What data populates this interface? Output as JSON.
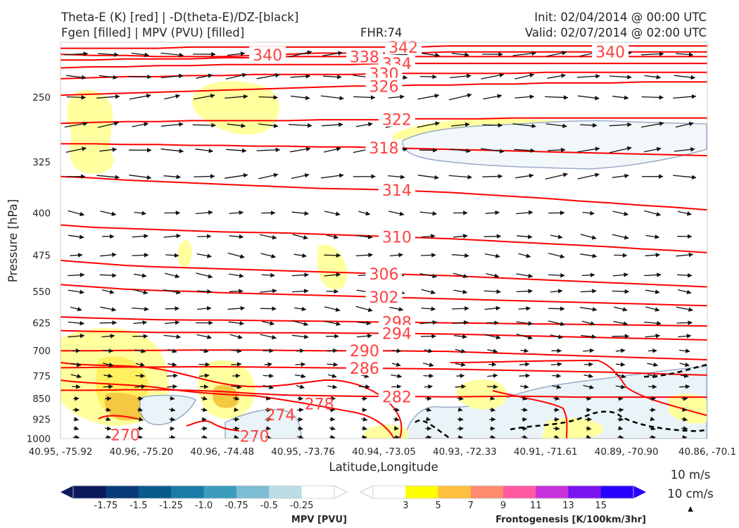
{
  "header": {
    "title_left_1": "Theta-E (K) [red] | -D(theta-E)/DZ-[black]",
    "title_left_2": "Fgen [filled] | MPV (PVU) [filled]",
    "title_center": "FHR:74",
    "title_right_1": "Init: 02/04/2014 @ 00:00 UTC",
    "title_right_2": "Valid: 02/07/2014 @ 02:00 UTC"
  },
  "chart_data": {
    "type": "cross-section",
    "xlabel": "Latitude,Longitude",
    "ylabel": "Pressure [hPa]",
    "x_ticks": [
      "40.95, -75.92",
      "40.96, -75.20",
      "40.96, -74.48",
      "40.95, -73.76",
      "40.94, -73.05",
      "40.93, -72.33",
      "40.91, -71.61",
      "40.89, -70.90",
      "40.86, -70.1"
    ],
    "x_first_tick": "40.95",
    "y_ticks": [
      250,
      325,
      400,
      475,
      550,
      625,
      700,
      775,
      850,
      925,
      1000
    ],
    "ylim": [
      1000,
      200
    ],
    "y_scale": "log-pressure",
    "theta_e": {
      "color": "#ff0000",
      "label_color": "#ff5050",
      "contours": [
        {
          "value": 342,
          "y": [
            205,
            205,
            205,
            205,
            204,
            204,
            204,
            204,
            204,
            204,
            204,
            204,
            203,
            203,
            203,
            203,
            203,
            203,
            203,
            203,
            203
          ],
          "labels": [
            {
              "text": "342",
              "x": 0.53
            }
          ]
        },
        {
          "value": 340,
          "y": [
            210,
            211,
            211,
            212,
            212,
            212,
            211,
            210,
            209,
            209,
            209,
            209,
            208,
            208,
            208,
            208,
            208,
            208,
            208,
            208,
            208
          ],
          "labels": [
            {
              "text": "340",
              "x": 0.32
            },
            {
              "text": "340",
              "x": 0.85
            }
          ]
        },
        {
          "value": 338,
          "y": [
            215,
            215,
            214,
            214,
            214,
            213,
            213,
            212,
            212,
            212,
            212,
            212,
            212,
            212,
            212,
            212,
            212,
            212,
            212,
            212,
            212
          ],
          "labels": [
            {
              "text": "338",
              "x": 0.47
            }
          ]
        },
        {
          "value": 334,
          "y": [
            222,
            221,
            221,
            220,
            220,
            219,
            219,
            219,
            219,
            219,
            218,
            218,
            218,
            218,
            218,
            218,
            218,
            218,
            218,
            218,
            218
          ],
          "labels": [
            {
              "text": "334",
              "x": 0.52
            }
          ]
        },
        {
          "value": 330,
          "y": [
            232,
            231,
            230,
            230,
            229,
            229,
            228,
            228,
            228,
            228,
            227,
            227,
            227,
            227,
            227,
            226,
            226,
            226,
            226,
            226,
            226
          ],
          "labels": [
            {
              "text": "330",
              "x": 0.5
            }
          ]
        },
        {
          "value": 326,
          "y": [
            248,
            247,
            246,
            245,
            244,
            243,
            242,
            241,
            240,
            239,
            239,
            238,
            238,
            237,
            237,
            236,
            236,
            236,
            235,
            235,
            235
          ],
          "labels": [
            {
              "text": "326",
              "x": 0.5
            }
          ]
        },
        {
          "value": 322,
          "y": [
            278,
            277,
            276,
            276,
            275,
            275,
            275,
            275,
            274,
            274,
            274,
            273,
            273,
            273,
            272,
            272,
            272,
            272,
            272,
            272,
            272
          ],
          "labels": [
            {
              "text": "322",
              "x": 0.52
            }
          ]
        },
        {
          "value": 318,
          "y": [
            302,
            302,
            303,
            303,
            304,
            304,
            305,
            305,
            306,
            306,
            307,
            308,
            309,
            310,
            311,
            312,
            313,
            314,
            315,
            316,
            317
          ],
          "labels": [
            {
              "text": "318",
              "x": 0.5
            }
          ]
        },
        {
          "value": 314,
          "y": [
            345,
            347,
            350,
            352,
            354,
            356,
            358,
            360,
            362,
            363,
            364,
            366,
            368,
            371,
            374,
            377,
            381,
            384,
            388,
            391,
            395
          ],
          "labels": [
            {
              "text": "314",
              "x": 0.52
            }
          ]
        },
        {
          "value": 310,
          "y": [
            420,
            424,
            426,
            428,
            430,
            432,
            433,
            434,
            436,
            438,
            440,
            442,
            444,
            447,
            450,
            453,
            456,
            459,
            463,
            466,
            470
          ],
          "labels": [
            {
              "text": "310",
              "x": 0.52
            }
          ]
        },
        {
          "value": 306,
          "y": [
            485,
            490,
            495,
            498,
            500,
            502,
            504,
            506,
            508,
            510,
            512,
            514,
            516,
            519,
            522,
            525,
            528,
            531,
            534,
            537,
            540
          ],
          "labels": [
            {
              "text": "306",
              "x": 0.5
            }
          ]
        },
        {
          "value": 302,
          "y": [
            535,
            540,
            545,
            548,
            550,
            553,
            555,
            557,
            559,
            561,
            563,
            565,
            567,
            569,
            571,
            573,
            575,
            577,
            579,
            581,
            583
          ],
          "labels": [
            {
              "text": "302",
              "x": 0.5
            }
          ]
        },
        {
          "value": 298,
          "y": [
            610,
            613,
            615,
            617,
            618,
            618,
            619,
            620,
            621,
            622,
            623,
            624,
            625,
            626,
            627,
            628,
            629,
            630,
            631,
            632,
            633
          ],
          "labels": [
            {
              "text": "298",
              "x": 0.52
            }
          ]
        },
        {
          "value": 294,
          "y": [
            645,
            647,
            648,
            650,
            650,
            650,
            651,
            651,
            651,
            652,
            652,
            653,
            654,
            656,
            658,
            660,
            662,
            664,
            666,
            668,
            670
          ],
          "labels": [
            {
              "text": "294",
              "x": 0.52
            }
          ]
        },
        {
          "value": 290,
          "y": [
            700,
            700,
            699,
            699,
            698,
            698,
            698,
            699,
            700,
            700,
            700,
            701,
            702,
            705,
            708,
            711,
            714,
            717,
            720,
            723,
            726
          ],
          "labels": [
            {
              "text": "290",
              "x": 0.47
            }
          ]
        },
        {
          "value": 286,
          "y": [
            750,
            749,
            748,
            748,
            747,
            747,
            748,
            749,
            750,
            751,
            752,
            753,
            754,
            756,
            758,
            760,
            762,
            764,
            767,
            770,
            773
          ],
          "labels": [
            {
              "text": "286",
              "x": 0.47
            }
          ]
        },
        {
          "value": 282,
          "y": [
            822,
            822,
            820,
            820,
            822,
            826,
            833,
            838,
            840,
            842,
            843,
            843,
            844,
            843,
            842,
            843,
            845,
            845,
            845,
            845,
            845
          ],
          "labels": [
            {
              "text": "282",
              "x": 0.52
            }
          ]
        }
      ],
      "low_labels": [
        {
          "text": "278",
          "x": 0.4,
          "p": 868
        },
        {
          "text": "274",
          "x": 0.34,
          "p": 908
        },
        {
          "text": "270",
          "x": 0.1,
          "p": 985
        },
        {
          "text": "270",
          "x": 0.3,
          "p": 990
        }
      ]
    },
    "fgen_colorbar": {
      "label": "Frontogenesis [K/100km/3hr]",
      "ticks": [
        3,
        5,
        7,
        9,
        11,
        13,
        15
      ],
      "colors": [
        "#ffffff",
        "#ffff00",
        "#ffc040",
        "#ff8c6e",
        "#ff5aa0",
        "#c832dc",
        "#7814f0",
        "#2800ff"
      ]
    },
    "mpv_colorbar": {
      "label": "MPV [PVU]",
      "ticks": [
        -1.75,
        -1.5,
        -1.25,
        -1.0,
        -0.75,
        -0.5,
        -0.25
      ],
      "tick_labels": [
        "-1.75",
        "-1.5",
        "-1.25",
        "-1.0",
        "-0.75",
        "-0.5",
        "-0.25"
      ],
      "colors": [
        "#0c1a5c",
        "#093a78",
        "#0b5a8c",
        "#1a7ca6",
        "#3c9cbe",
        "#7cbcd4",
        "#bcdce6",
        "#ffffff"
      ]
    },
    "vector_reference": {
      "label_1": "10 m/s",
      "label_2": "10 cm/s"
    }
  }
}
